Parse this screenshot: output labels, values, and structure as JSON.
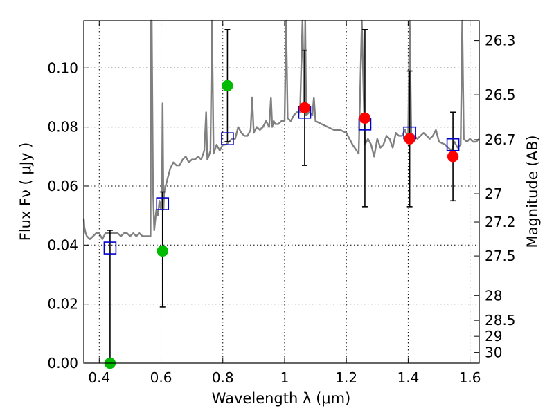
{
  "chart_data": {
    "type": "scatter",
    "title": "",
    "xlabel": "Wavelength  λ (μm)",
    "ylabel": "Flux  Fν  ( μJy )",
    "ylabel_right": "Magnitude (AB)",
    "xlim": [
      0.35,
      1.63
    ],
    "ylim": [
      0.0,
      0.116
    ],
    "grid": true,
    "legend": "none",
    "x_ticks": [
      {
        "value": 0.4,
        "label": "0.4"
      },
      {
        "value": 0.6,
        "label": "0.6"
      },
      {
        "value": 0.8,
        "label": "0.8"
      },
      {
        "value": 1.0,
        "label": "1"
      },
      {
        "value": 1.2,
        "label": "1.2"
      },
      {
        "value": 1.4,
        "label": "1.4"
      },
      {
        "value": 1.6,
        "label": "1.6"
      }
    ],
    "y_ticks": [
      {
        "value": 0.0,
        "label": "0.00"
      },
      {
        "value": 0.02,
        "label": "0.02"
      },
      {
        "value": 0.04,
        "label": "0.04"
      },
      {
        "value": 0.06,
        "label": "0.06"
      },
      {
        "value": 0.08,
        "label": "0.08"
      },
      {
        "value": 0.1,
        "label": "0.10"
      }
    ],
    "right_ticks": [
      {
        "label": "26.3",
        "flux": 0.1093
      },
      {
        "label": "26.5",
        "flux": 0.0909
      },
      {
        "label": "26.7",
        "flux": 0.0757
      },
      {
        "label": "27",
        "flux": 0.0574
      },
      {
        "label": "27.2",
        "flux": 0.0478
      },
      {
        "label": "27.5",
        "flux": 0.0363
      },
      {
        "label": "28",
        "flux": 0.0229
      },
      {
        "label": "28.5",
        "flux": 0.0145
      },
      {
        "label": "29",
        "flux": 0.0091
      },
      {
        "label": "30",
        "flux": 0.0036
      }
    ],
    "colors": {
      "spectrum": "#808080",
      "model": "#0000cc",
      "observed_green": "#00bb00",
      "observed_red": "#ff0000",
      "errorbar": "#000000"
    },
    "spectrum": {
      "x": [
        0.35,
        0.352,
        0.356,
        0.36,
        0.37,
        0.38,
        0.39,
        0.4,
        0.41,
        0.42,
        0.43,
        0.44,
        0.45,
        0.46,
        0.47,
        0.48,
        0.49,
        0.5,
        0.51,
        0.52,
        0.53,
        0.54,
        0.55,
        0.56,
        0.566,
        0.568,
        0.57,
        0.574,
        0.578,
        0.58,
        0.585,
        0.59,
        0.595,
        0.6,
        0.603,
        0.605,
        0.608,
        0.61,
        0.62,
        0.63,
        0.64,
        0.65,
        0.66,
        0.67,
        0.68,
        0.69,
        0.7,
        0.71,
        0.72,
        0.73,
        0.74,
        0.746,
        0.75,
        0.754,
        0.76,
        0.765,
        0.77,
        0.78,
        0.79,
        0.8,
        0.81,
        0.82,
        0.83,
        0.84,
        0.85,
        0.86,
        0.87,
        0.88,
        0.89,
        0.895,
        0.9,
        0.91,
        0.92,
        0.93,
        0.94,
        0.95,
        0.956,
        0.96,
        0.965,
        0.97,
        0.98,
        0.99,
        1.0,
        1.005,
        1.01,
        1.02,
        1.03,
        1.04,
        1.05,
        1.058,
        1.064,
        1.067,
        1.07,
        1.08,
        1.09,
        1.095,
        1.1,
        1.12,
        1.14,
        1.16,
        1.18,
        1.2,
        1.22,
        1.24,
        1.25,
        1.26,
        1.27,
        1.28,
        1.29,
        1.3,
        1.31,
        1.32,
        1.33,
        1.34,
        1.35,
        1.36,
        1.37,
        1.38,
        1.39,
        1.4,
        1.405,
        1.41,
        1.42,
        1.43,
        1.44,
        1.45,
        1.46,
        1.47,
        1.48,
        1.49,
        1.5,
        1.52,
        1.54,
        1.55,
        1.56,
        1.57,
        1.575,
        1.58,
        1.59,
        1.6,
        1.61,
        1.62,
        1.63
      ],
      "y": [
        0.049,
        0.046,
        0.044,
        0.043,
        0.042,
        0.043,
        0.044,
        0.044,
        0.042,
        0.044,
        0.044,
        0.044,
        0.044,
        0.044,
        0.043,
        0.044,
        0.044,
        0.043,
        0.044,
        0.043,
        0.044,
        0.043,
        0.043,
        0.043,
        0.043,
        0.116,
        0.116,
        0.06,
        0.045,
        0.047,
        0.052,
        0.05,
        0.055,
        0.052,
        0.058,
        0.088,
        0.052,
        0.058,
        0.062,
        0.066,
        0.068,
        0.067,
        0.067,
        0.069,
        0.07,
        0.068,
        0.069,
        0.069,
        0.07,
        0.069,
        0.072,
        0.085,
        0.069,
        0.07,
        0.072,
        0.116,
        0.071,
        0.074,
        0.072,
        0.074,
        0.074,
        0.075,
        0.076,
        0.076,
        0.08,
        0.078,
        0.077,
        0.077,
        0.079,
        0.09,
        0.078,
        0.08,
        0.079,
        0.08,
        0.082,
        0.08,
        0.09,
        0.08,
        0.082,
        0.081,
        0.081,
        0.082,
        0.082,
        0.116,
        0.083,
        0.082,
        0.084,
        0.085,
        0.085,
        0.116,
        0.085,
        0.116,
        0.084,
        0.085,
        0.084,
        0.09,
        0.082,
        0.081,
        0.08,
        0.079,
        0.079,
        0.078,
        0.074,
        0.071,
        0.116,
        0.074,
        0.076,
        0.074,
        0.07,
        0.076,
        0.073,
        0.074,
        0.077,
        0.076,
        0.073,
        0.078,
        0.077,
        0.077,
        0.079,
        0.076,
        0.116,
        0.078,
        0.077,
        0.076,
        0.077,
        0.078,
        0.077,
        0.076,
        0.077,
        0.079,
        0.075,
        0.074,
        0.072,
        0.075,
        0.073,
        0.074,
        0.116,
        0.076,
        0.075,
        0.076,
        0.075,
        0.075,
        0.076
      ]
    },
    "series": [
      {
        "marker": "square",
        "x": [
          0.435,
          0.605,
          0.815,
          1.065,
          1.26,
          1.405,
          1.545
        ],
        "y": [
          0.039,
          0.054,
          0.076,
          0.085,
          0.081,
          0.078,
          0.074
        ]
      },
      {
        "marker": "circle",
        "x": [
          0.435,
          0.605,
          0.815
        ],
        "y": [
          0.0,
          0.038,
          0.094
        ],
        "yerr_low": [
          0.0,
          0.019,
          0.075
        ],
        "yerr_high": [
          0.045,
          0.058,
          0.113
        ]
      },
      {
        "marker": "circle",
        "x": [
          1.065,
          1.26,
          1.405,
          1.545
        ],
        "y": [
          0.0865,
          0.083,
          0.076,
          0.07
        ],
        "yerr_low": [
          0.067,
          0.053,
          0.053,
          0.055
        ],
        "yerr_high": [
          0.106,
          0.113,
          0.099,
          0.085
        ]
      }
    ]
  }
}
